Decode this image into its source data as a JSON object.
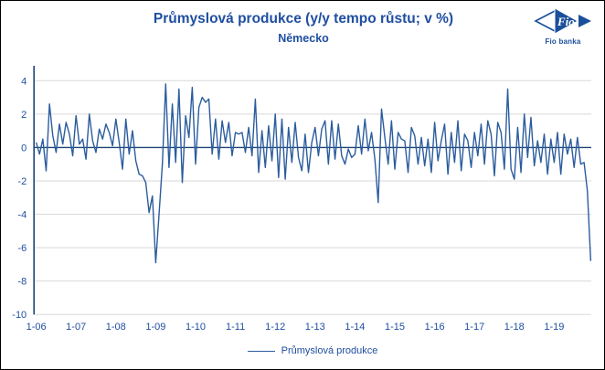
{
  "header": {
    "title": "Průmyslová produkce (y/y tempo růstu; v %)",
    "subtitle": "Německo"
  },
  "logo": {
    "mark_text": "Fio",
    "caption": "Fio banka"
  },
  "colors": {
    "text_blue": "#1F4EA0",
    "line_blue": "#2B5C9E",
    "axis_navy": "#1F4575",
    "gridline": "#D9D9D9",
    "logo_blue": "#1B4F9C",
    "frame_border": "#000000",
    "background": "#FFFFFF"
  },
  "legend": {
    "label": "Průmyslová produkce"
  },
  "chart_data": {
    "type": "line",
    "title": "Průmyslová produkce (y/y tempo růstu; v %)",
    "subtitle": "Německo",
    "xlabel": "",
    "ylabel": "",
    "x_start": "2006-01",
    "x_end": "2019-12",
    "x_freq": "monthly",
    "x_tick_labels": [
      "1-06",
      "1-07",
      "1-08",
      "1-09",
      "1-10",
      "1-11",
      "1-12",
      "1-13",
      "1-14",
      "1-15",
      "1-16",
      "1-17",
      "1-18",
      "1-19"
    ],
    "y_ticks": [
      4,
      2,
      0,
      -2,
      -4,
      -6,
      -8,
      -10
    ],
    "ylim": [
      -10,
      4
    ],
    "grid": "horizontal-light",
    "legend_position": "bottom-center",
    "series": [
      {
        "name": "Průmyslová produkce",
        "color": "#2B5C9E",
        "values": [
          0.3,
          -0.4,
          0.5,
          -1.4,
          2.6,
          0.7,
          -0.3,
          1.4,
          0.2,
          1.5,
          0.8,
          -0.5,
          1.9,
          0.2,
          0.5,
          -0.7,
          2.0,
          0.4,
          -0.3,
          1.1,
          0.5,
          1.4,
          0.9,
          0.1,
          1.7,
          0.3,
          -1.3,
          1.7,
          -0.4,
          1.0,
          -0.8,
          -1.6,
          -1.7,
          -2.1,
          -3.9,
          -2.9,
          -6.9,
          -4.0,
          -1.0,
          3.8,
          -1.2,
          2.6,
          -0.9,
          3.5,
          -2.1,
          1.9,
          0.6,
          3.6,
          -1.0,
          2.4,
          3.0,
          2.7,
          2.9,
          -0.4,
          1.7,
          -0.7,
          1.6,
          0.3,
          1.5,
          -0.5,
          0.9,
          0.8,
          0.9,
          -0.3,
          1.2,
          -0.5,
          2.9,
          -1.5,
          1.0,
          -1.2,
          1.3,
          -0.8,
          2.0,
          -1.8,
          1.7,
          -1.9,
          1.2,
          -0.9,
          1.5,
          -0.6,
          -1.4,
          0.8,
          -1.5,
          0.3,
          1.2,
          -0.5,
          1.1,
          1.6,
          -1.0,
          1.6,
          -0.7,
          1.4,
          -0.5,
          -1.0,
          -0.1,
          -0.6,
          -0.4,
          1.3,
          -0.4,
          1.7,
          -0.2,
          0.9,
          -0.7,
          -3.3,
          2.3,
          0.6,
          -1.0,
          1.6,
          -1.3,
          0.9,
          0.5,
          0.4,
          -1.5,
          1.2,
          0.7,
          -1.0,
          0.6,
          -1.1,
          0.5,
          -1.5,
          1.5,
          -0.8,
          0.4,
          1.4,
          -1.6,
          0.9,
          -0.9,
          1.6,
          -1.4,
          0.8,
          0.4,
          -1.2,
          0.9,
          -0.5,
          1.4,
          -1.0,
          1.6,
          0.8,
          -1.7,
          1.5,
          0.9,
          -1.3,
          3.5,
          -1.3,
          -1.9,
          1.2,
          -1.5,
          2.0,
          -0.6,
          1.8,
          -1.1,
          0.4,
          -0.9,
          0.8,
          -1.6,
          0.5,
          -0.9,
          0.9,
          -1.6,
          0.8,
          -0.4,
          0.5,
          -1.2,
          0.6,
          -1.0,
          -0.9,
          -2.6,
          -6.8
        ]
      }
    ]
  }
}
